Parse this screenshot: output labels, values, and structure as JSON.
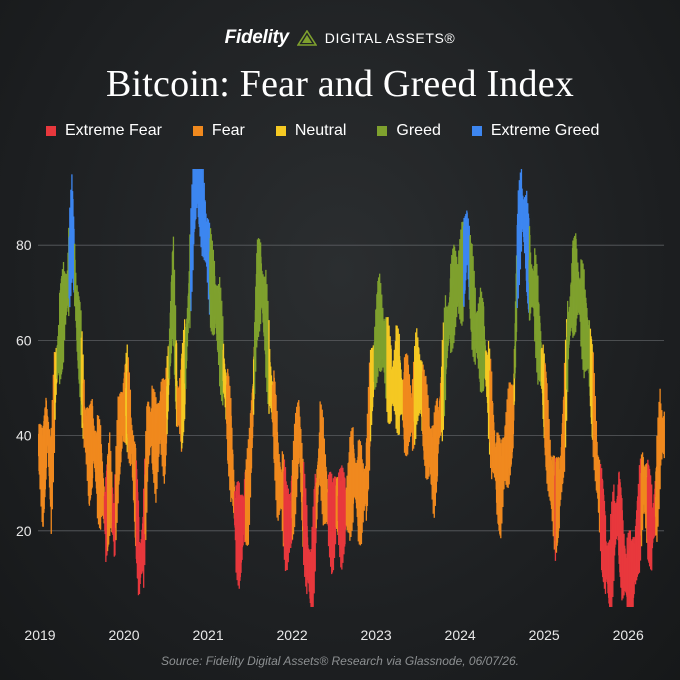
{
  "header": {
    "brand_name": "Fidelity",
    "brand_sub": "DIGITAL ASSETS®",
    "logo_icon": "fidelity-pyramid-icon"
  },
  "legend": [
    {
      "label": "Extreme Fear",
      "color": "#e8383d"
    },
    {
      "label": "Fear",
      "color": "#f0891e"
    },
    {
      "label": "Neutral",
      "color": "#f5c923"
    },
    {
      "label": "Greed",
      "color": "#7fa12e"
    },
    {
      "label": "Extreme Greed",
      "color": "#3d86f0"
    }
  ],
  "chart_data": {
    "type": "bar",
    "title": "Bitcoin: Fear and Greed Index",
    "xlabel": "",
    "ylabel": "",
    "x_tick_labels": [
      "2019",
      "2020",
      "2021",
      "2022",
      "2023",
      "2024",
      "2025",
      "2026"
    ],
    "y_ticks": [
      20,
      40,
      60,
      80
    ],
    "ylim": [
      0,
      100
    ],
    "xlim": [
      2019.0,
      2026.45
    ],
    "grid": "horizontal",
    "legend_placement": "top",
    "categories_thresholds": {
      "extreme_fear_max": 25,
      "fear_max": 47,
      "neutral_max": 55,
      "greed_max": 75
    },
    "series": [
      {
        "name": "Fear and Greed Index",
        "interval_years": 0.05,
        "points": [
          [
            2019.0,
            38
          ],
          [
            2019.05,
            30
          ],
          [
            2019.1,
            42
          ],
          [
            2019.15,
            30
          ],
          [
            2019.2,
            52
          ],
          [
            2019.25,
            60
          ],
          [
            2019.3,
            66
          ],
          [
            2019.35,
            72
          ],
          [
            2019.4,
            84
          ],
          [
            2019.45,
            66
          ],
          [
            2019.5,
            56
          ],
          [
            2019.55,
            42
          ],
          [
            2019.6,
            35
          ],
          [
            2019.65,
            39
          ],
          [
            2019.7,
            33
          ],
          [
            2019.75,
            30
          ],
          [
            2019.8,
            22
          ],
          [
            2019.85,
            30
          ],
          [
            2019.9,
            20
          ],
          [
            2019.95,
            38
          ],
          [
            2020.0,
            44
          ],
          [
            2020.05,
            48
          ],
          [
            2020.1,
            40
          ],
          [
            2020.15,
            28
          ],
          [
            2020.2,
            12
          ],
          [
            2020.25,
            18
          ],
          [
            2020.3,
            40
          ],
          [
            2020.35,
            42
          ],
          [
            2020.4,
            36
          ],
          [
            2020.45,
            44
          ],
          [
            2020.5,
            40
          ],
          [
            2020.55,
            54
          ],
          [
            2020.6,
            72
          ],
          [
            2020.65,
            46
          ],
          [
            2020.7,
            46
          ],
          [
            2020.75,
            56
          ],
          [
            2020.8,
            72
          ],
          [
            2020.85,
            90
          ],
          [
            2020.9,
            93
          ],
          [
            2020.95,
            88
          ],
          [
            2021.0,
            80
          ],
          [
            2021.05,
            72
          ],
          [
            2021.1,
            68
          ],
          [
            2021.15,
            62
          ],
          [
            2021.2,
            54
          ],
          [
            2021.25,
            44
          ],
          [
            2021.3,
            34
          ],
          [
            2021.35,
            20
          ],
          [
            2021.4,
            18
          ],
          [
            2021.45,
            24
          ],
          [
            2021.5,
            28
          ],
          [
            2021.55,
            46
          ],
          [
            2021.6,
            70
          ],
          [
            2021.65,
            72
          ],
          [
            2021.7,
            64
          ],
          [
            2021.75,
            52
          ],
          [
            2021.8,
            44
          ],
          [
            2021.85,
            30
          ],
          [
            2021.9,
            28
          ],
          [
            2021.95,
            20
          ],
          [
            2022.0,
            22
          ],
          [
            2022.05,
            32
          ],
          [
            2022.1,
            42
          ],
          [
            2022.15,
            24
          ],
          [
            2022.2,
            14
          ],
          [
            2022.25,
            8
          ],
          [
            2022.3,
            24
          ],
          [
            2022.35,
            38
          ],
          [
            2022.4,
            30
          ],
          [
            2022.45,
            24
          ],
          [
            2022.5,
            20
          ],
          [
            2022.55,
            26
          ],
          [
            2022.6,
            22
          ],
          [
            2022.65,
            24
          ],
          [
            2022.7,
            28
          ],
          [
            2022.75,
            32
          ],
          [
            2022.8,
            28
          ],
          [
            2022.85,
            27
          ],
          [
            2022.9,
            30
          ],
          [
            2022.95,
            48
          ],
          [
            2023.0,
            56
          ],
          [
            2023.05,
            64
          ],
          [
            2023.1,
            60
          ],
          [
            2023.15,
            54
          ],
          [
            2023.2,
            50
          ],
          [
            2023.25,
            52
          ],
          [
            2023.3,
            50
          ],
          [
            2023.35,
            46
          ],
          [
            2023.4,
            46
          ],
          [
            2023.45,
            44
          ],
          [
            2023.5,
            52
          ],
          [
            2023.55,
            50
          ],
          [
            2023.6,
            42
          ],
          [
            2023.65,
            38
          ],
          [
            2023.7,
            32
          ],
          [
            2023.75,
            40
          ],
          [
            2023.8,
            48
          ],
          [
            2023.85,
            60
          ],
          [
            2023.9,
            66
          ],
          [
            2023.95,
            70
          ],
          [
            2024.0,
            72
          ],
          [
            2024.05,
            74
          ],
          [
            2024.1,
            82
          ],
          [
            2024.15,
            70
          ],
          [
            2024.2,
            62
          ],
          [
            2024.25,
            60
          ],
          [
            2024.3,
            58
          ],
          [
            2024.35,
            50
          ],
          [
            2024.4,
            40
          ],
          [
            2024.45,
            32
          ],
          [
            2024.5,
            28
          ],
          [
            2024.55,
            36
          ],
          [
            2024.6,
            40
          ],
          [
            2024.65,
            44
          ],
          [
            2024.7,
            78
          ],
          [
            2024.75,
            88
          ],
          [
            2024.8,
            82
          ],
          [
            2024.85,
            72
          ],
          [
            2024.9,
            70
          ],
          [
            2024.95,
            60
          ],
          [
            2025.0,
            52
          ],
          [
            2025.05,
            40
          ],
          [
            2025.1,
            30
          ],
          [
            2025.15,
            24
          ],
          [
            2025.2,
            28
          ],
          [
            2025.25,
            40
          ],
          [
            2025.3,
            60
          ],
          [
            2025.35,
            70
          ],
          [
            2025.4,
            72
          ],
          [
            2025.45,
            68
          ],
          [
            2025.5,
            62
          ],
          [
            2025.55,
            58
          ],
          [
            2025.6,
            46
          ],
          [
            2025.65,
            32
          ],
          [
            2025.7,
            22
          ],
          [
            2025.75,
            14
          ],
          [
            2025.8,
            10
          ],
          [
            2025.85,
            20
          ],
          [
            2025.9,
            24
          ],
          [
            2025.95,
            14
          ],
          [
            2026.0,
            10
          ],
          [
            2026.05,
            8
          ],
          [
            2026.1,
            14
          ],
          [
            2026.15,
            22
          ],
          [
            2026.2,
            30
          ],
          [
            2026.25,
            24
          ],
          [
            2026.3,
            20
          ],
          [
            2026.35,
            26
          ],
          [
            2026.4,
            40
          ]
        ]
      }
    ]
  },
  "source": "Source: Fidelity Digital Assets® Research via Glassnode, 06/07/26."
}
